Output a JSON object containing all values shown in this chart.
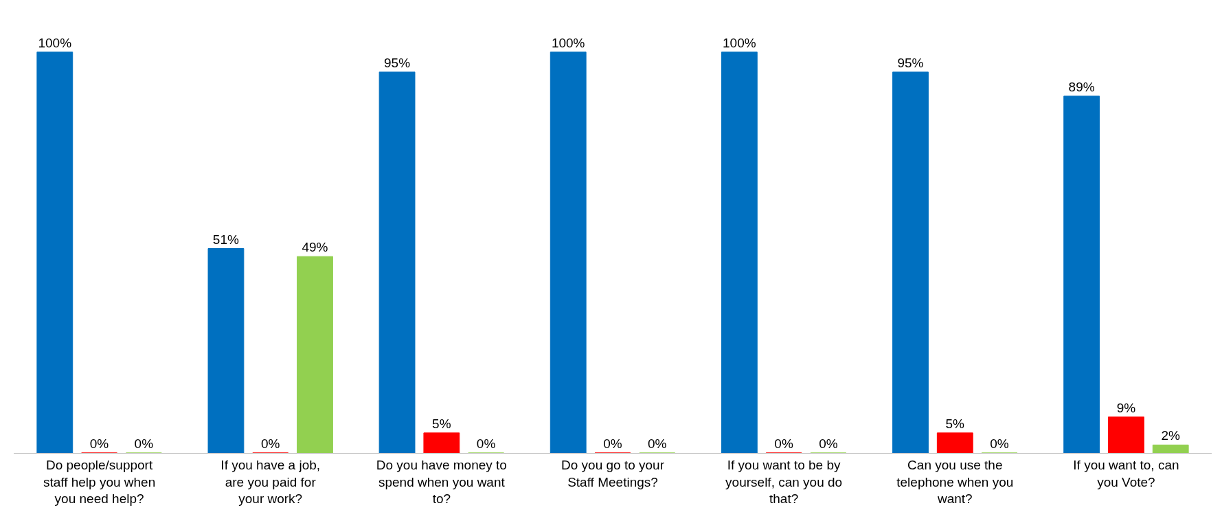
{
  "chart_data": {
    "type": "bar",
    "categories": [
      "Do people/support staff help you when you need help?",
      "If you have a job, are you paid for your work?",
      "Do you have money to spend when you want to?",
      "Do you go to your Staff Meetings?",
      "If you want to be by yourself, can you do that?",
      "Can you use the telephone when you want?",
      "If you want to, can you Vote?"
    ],
    "series": [
      {
        "color": "#0070c0",
        "values": [
          100,
          51,
          95,
          100,
          100,
          95,
          89
        ],
        "value_labels": [
          "100%",
          "51%",
          "95%",
          "100%",
          "100%",
          "95%",
          "89%"
        ]
      },
      {
        "color": "#ff0000",
        "values": [
          0,
          0,
          5,
          0,
          0,
          5,
          9
        ],
        "value_labels": [
          "0%",
          "0%",
          "5%",
          "0%",
          "0%",
          "5%",
          "9%"
        ]
      },
      {
        "color": "#92d050",
        "values": [
          0,
          49,
          0,
          0,
          0,
          0,
          2
        ],
        "value_labels": [
          "0%",
          "49%",
          "0%",
          "0%",
          "0%",
          "0%",
          "2%"
        ]
      }
    ],
    "legend": false
  }
}
